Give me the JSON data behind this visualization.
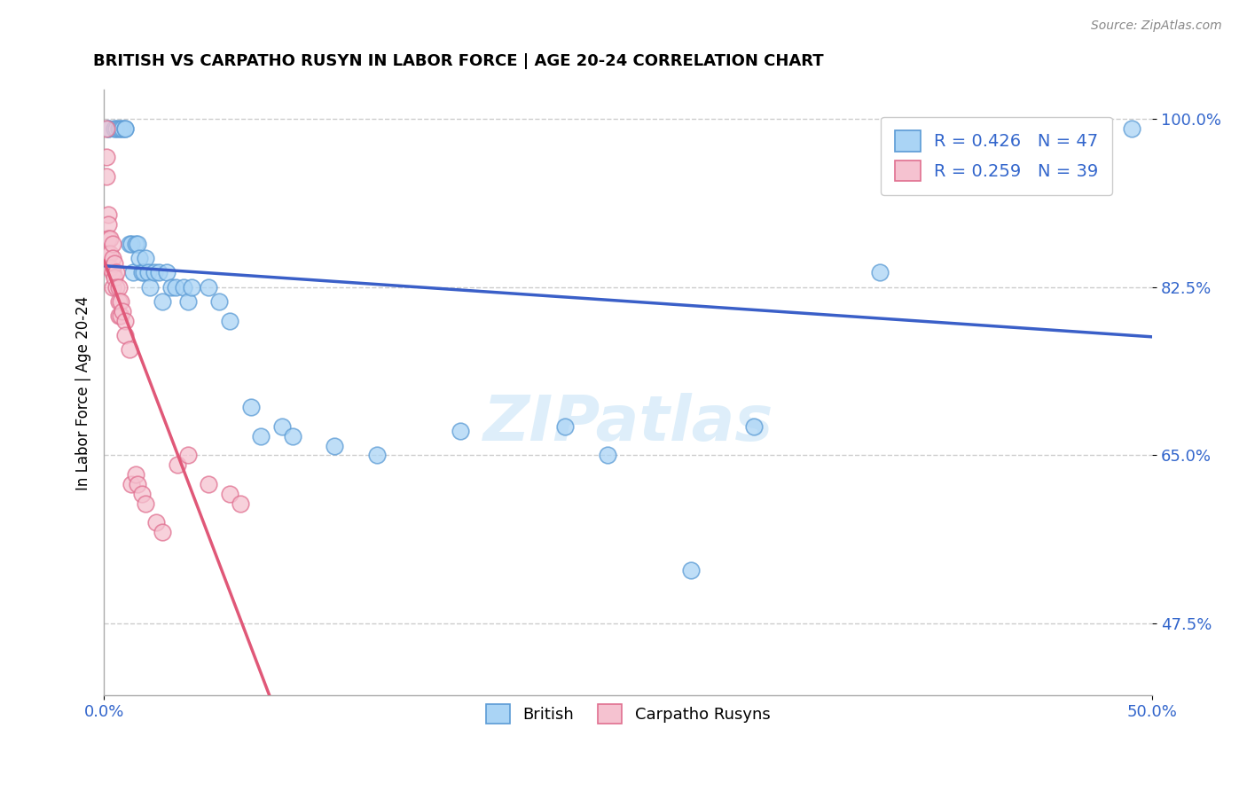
{
  "title": "BRITISH VS CARPATHO RUSYN IN LABOR FORCE | AGE 20-24 CORRELATION CHART",
  "source_text": "Source: ZipAtlas.com",
  "ylabel": "In Labor Force | Age 20-24",
  "xmin": 0.0,
  "xmax": 0.5,
  "ymin": 0.4,
  "ymax": 1.03,
  "xtick_positions": [
    0.0,
    0.5
  ],
  "xtick_labels": [
    "0.0%",
    "50.0%"
  ],
  "ytick_positions": [
    0.475,
    0.65,
    0.825,
    1.0
  ],
  "ytick_labels": [
    "47.5%",
    "65.0%",
    "82.5%",
    "100.0%"
  ],
  "grid_color": "#cccccc",
  "background_color": "#ffffff",
  "blue_fill": "#aad4f5",
  "blue_edge": "#5b9bd5",
  "pink_fill": "#f5c2d0",
  "pink_edge": "#e07090",
  "blue_line": "#3a5fc8",
  "pink_line": "#e05878",
  "legend_blue_label": "R = 0.426   N = 47",
  "legend_pink_label": "R = 0.259   N = 39",
  "watermark": "ZIPatlas",
  "british_x": [
    0.002,
    0.002,
    0.005,
    0.006,
    0.007,
    0.008,
    0.009,
    0.01,
    0.01,
    0.012,
    0.013,
    0.014,
    0.015,
    0.016,
    0.017,
    0.018,
    0.019,
    0.02,
    0.021,
    0.022,
    0.024,
    0.026,
    0.028,
    0.03,
    0.032,
    0.034,
    0.038,
    0.04,
    0.042,
    0.05,
    0.055,
    0.06,
    0.07,
    0.075,
    0.085,
    0.09,
    0.11,
    0.13,
    0.17,
    0.22,
    0.24,
    0.28,
    0.31,
    0.37,
    0.43,
    0.46,
    0.49
  ],
  "british_y": [
    0.99,
    0.99,
    0.99,
    0.99,
    0.99,
    0.99,
    0.99,
    0.99,
    0.99,
    0.87,
    0.87,
    0.84,
    0.87,
    0.87,
    0.855,
    0.84,
    0.84,
    0.855,
    0.84,
    0.825,
    0.84,
    0.84,
    0.81,
    0.84,
    0.825,
    0.825,
    0.825,
    0.81,
    0.825,
    0.825,
    0.81,
    0.79,
    0.7,
    0.67,
    0.68,
    0.67,
    0.66,
    0.65,
    0.675,
    0.68,
    0.65,
    0.53,
    0.68,
    0.84,
    0.97,
    0.99,
    0.99
  ],
  "rusyn_x": [
    0.001,
    0.001,
    0.001,
    0.002,
    0.002,
    0.002,
    0.002,
    0.003,
    0.003,
    0.003,
    0.004,
    0.004,
    0.004,
    0.004,
    0.005,
    0.005,
    0.006,
    0.006,
    0.007,
    0.007,
    0.007,
    0.008,
    0.008,
    0.009,
    0.01,
    0.01,
    0.012,
    0.013,
    0.015,
    0.016,
    0.018,
    0.02,
    0.025,
    0.028,
    0.035,
    0.04,
    0.05,
    0.06,
    0.065
  ],
  "rusyn_y": [
    0.99,
    0.96,
    0.94,
    0.9,
    0.89,
    0.875,
    0.86,
    0.875,
    0.86,
    0.845,
    0.87,
    0.855,
    0.84,
    0.825,
    0.85,
    0.835,
    0.84,
    0.825,
    0.825,
    0.81,
    0.795,
    0.81,
    0.795,
    0.8,
    0.79,
    0.775,
    0.76,
    0.62,
    0.63,
    0.62,
    0.61,
    0.6,
    0.58,
    0.57,
    0.64,
    0.65,
    0.62,
    0.61,
    0.6
  ]
}
